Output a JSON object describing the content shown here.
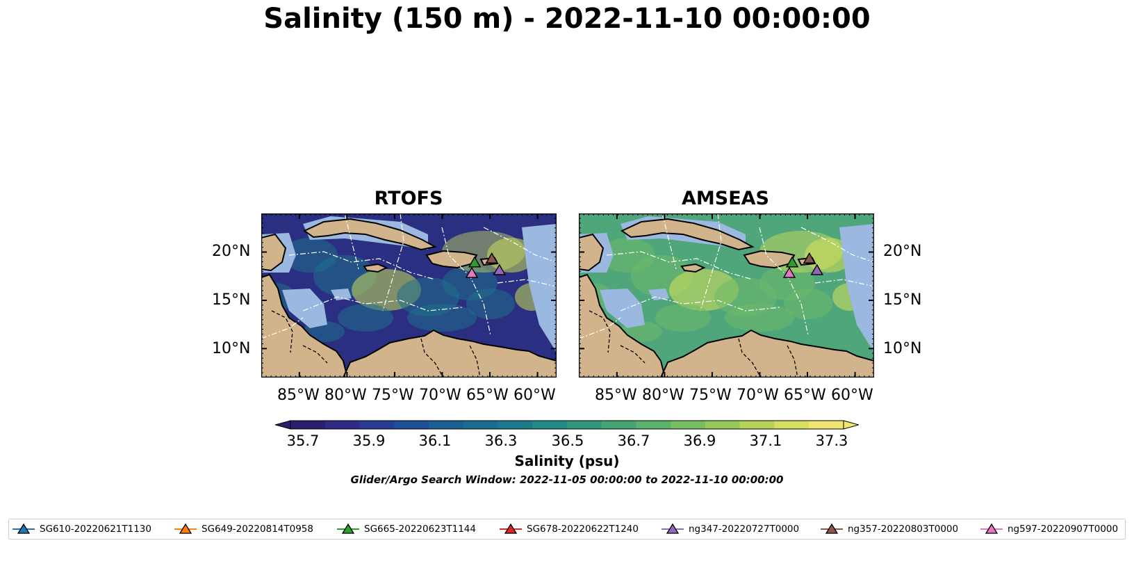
{
  "title": "Salinity (150 m) - 2022-11-10 00:00:00",
  "panels": [
    {
      "name": "RTOFS",
      "colors": {
        "base": "#2a2f82",
        "hi": "#1f6f8b",
        "hot": "#c9df5a"
      }
    },
    {
      "name": "AMSEAS",
      "colors": {
        "base": "#4fa67a",
        "hi": "#6fba6a",
        "hot": "#d7e05a"
      }
    }
  ],
  "lon_ticks": [
    "85°W",
    "80°W",
    "75°W",
    "70°W",
    "65°W",
    "60°W"
  ],
  "lat_ticks": [
    "20°N",
    "15°N",
    "10°N"
  ],
  "colorbar": {
    "label": "Salinity (psu)",
    "ticks": [
      "35.7",
      "35.9",
      "36.1",
      "36.3",
      "36.5",
      "36.7",
      "36.9",
      "37.1",
      "37.3"
    ],
    "colors": [
      "#2b1e6e",
      "#2d2b86",
      "#283c95",
      "#1f4f96",
      "#1b5f93",
      "#1a6d8f",
      "#1c7b8b",
      "#238985",
      "#31977d",
      "#45a474",
      "#5cb26b",
      "#77be62",
      "#95c95a",
      "#b5d457",
      "#d6df60",
      "#f0e66f"
    ]
  },
  "search_window": "Glider/Argo Search Window: 2022-11-05 00:00:00 to 2022-11-10 00:00:00",
  "legend": [
    {
      "label": "SG610-20220621T1130",
      "color": "#1f77b4"
    },
    {
      "label": "SG649-20220814T0958",
      "color": "#ff7f0e"
    },
    {
      "label": "SG665-20220623T1144",
      "color": "#2ca02c"
    },
    {
      "label": "SG678-20220622T1240",
      "color": "#d62728"
    },
    {
      "label": "ng347-20220727T0000",
      "color": "#9467bd"
    },
    {
      "label": "ng357-20220803T0000",
      "color": "#8c564b"
    },
    {
      "label": "ng597-20220907T0000",
      "color": "#e377c2"
    }
  ],
  "map_colors": {
    "land": "#d2b48c",
    "shelf": "#9ab8e0",
    "eez": "#ffffff",
    "border": "#000000"
  },
  "glider_positions": [
    {
      "id": "SG665-20220623T1144",
      "lon": -66.6,
      "lat": 18.9
    },
    {
      "id": "ng357-20220803T0000",
      "lon": -64.8,
      "lat": 19.3
    },
    {
      "id": "ng347-20220727T0000",
      "lon": -64.0,
      "lat": 18.1
    },
    {
      "id": "ng597-20220907T0000",
      "lon": -66.9,
      "lat": 17.8
    }
  ]
}
